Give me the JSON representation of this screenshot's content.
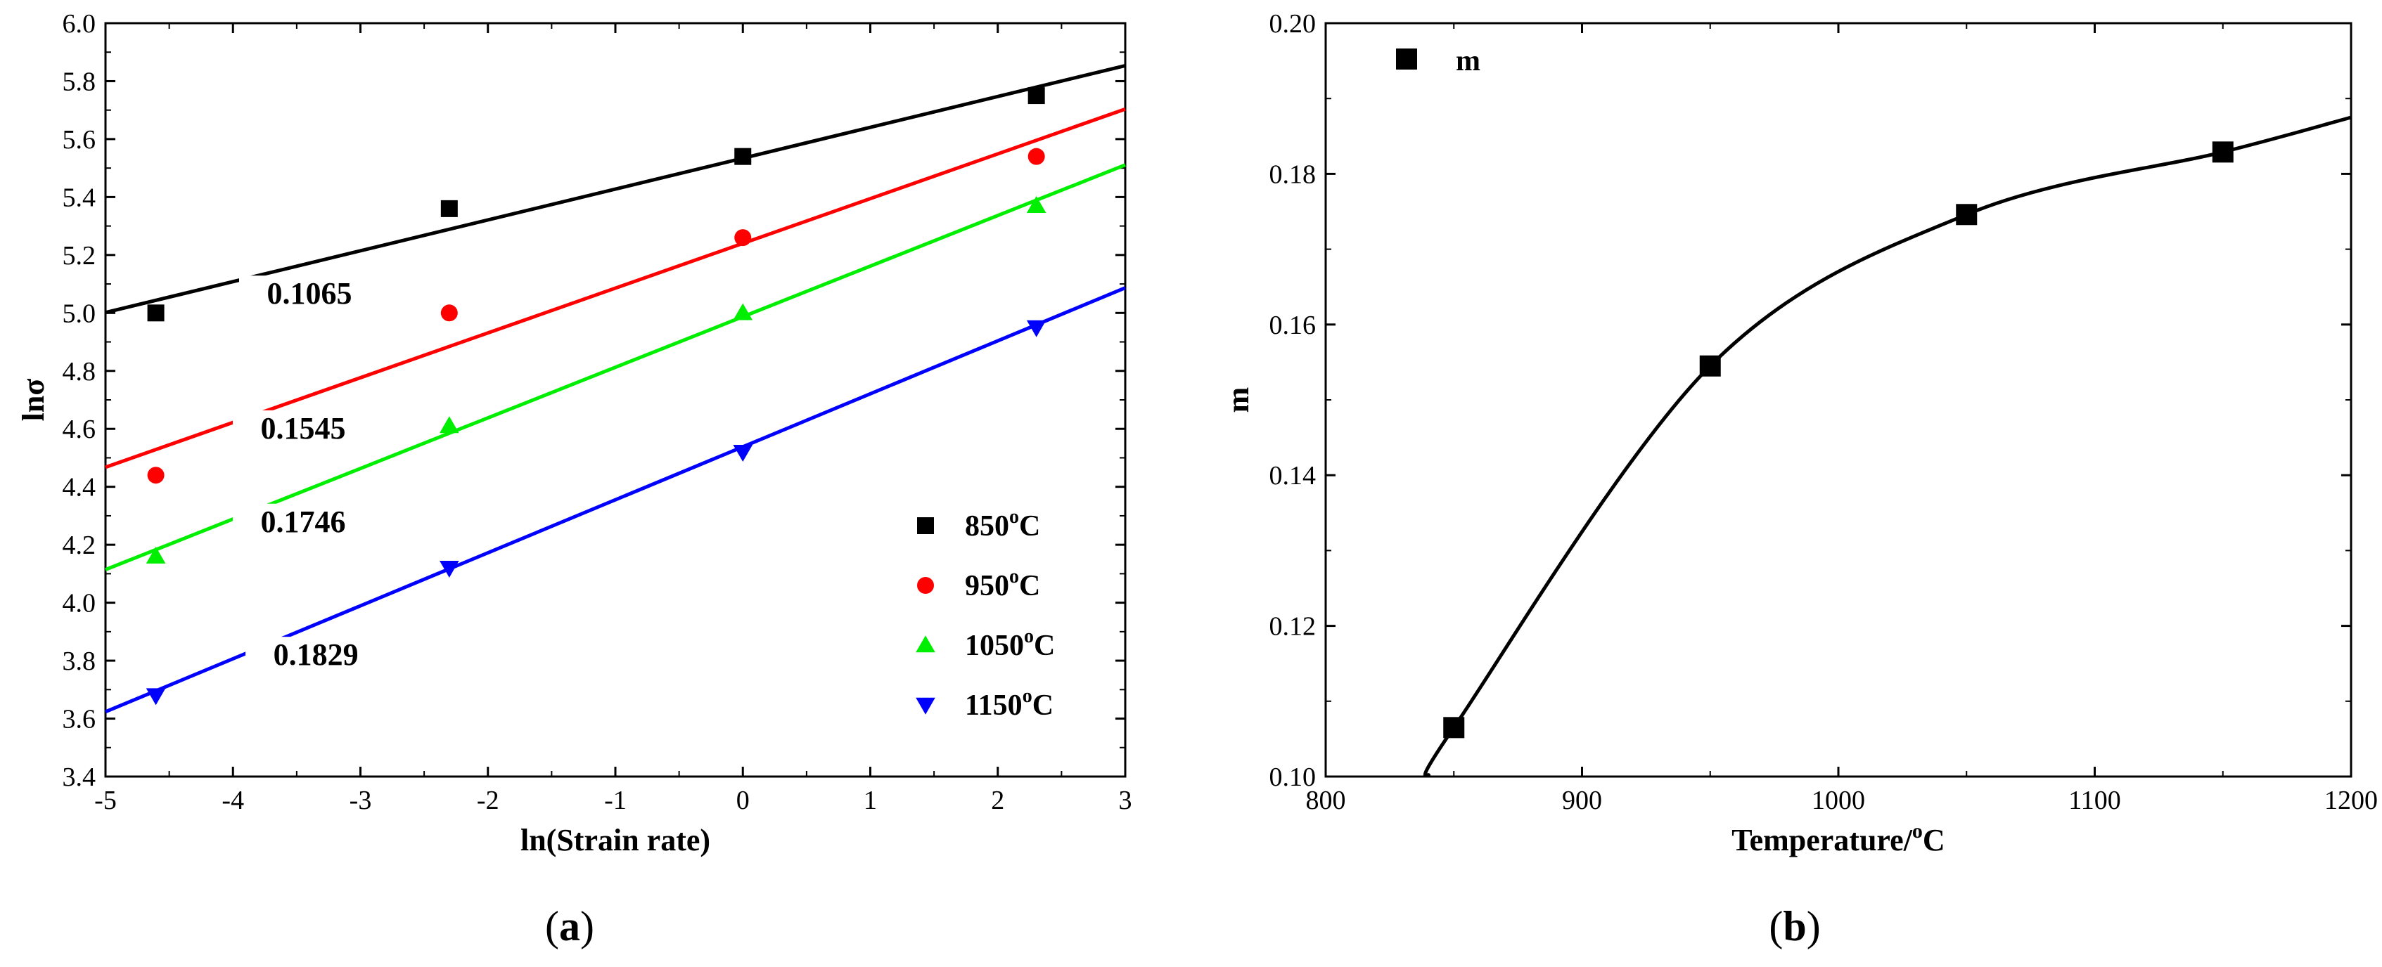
{
  "chart_data": [
    {
      "type": "scatter",
      "panel_label": "a",
      "xlabel": "ln(Strain rate)",
      "ylabel": "lnσ",
      "xlim": [
        -5,
        3
      ],
      "ylim": [
        3.4,
        6.0
      ],
      "xticks": [
        "-5",
        "-4",
        "-3",
        "-2",
        "-1",
        "0",
        "1",
        "2",
        "3"
      ],
      "yticks": [
        "3.4",
        "3.6",
        "3.8",
        "4.0",
        "4.2",
        "4.4",
        "4.6",
        "4.8",
        "5.0",
        "5.2",
        "5.4",
        "5.6",
        "5.8",
        "6.0"
      ],
      "legend_position": "bottom-right",
      "series": [
        {
          "name": "850",
          "legend_suffix": "C",
          "marker": "square",
          "color": "#000000",
          "x": [
            -4.605,
            -2.303,
            0,
            2.303
          ],
          "y": [
            5.0,
            5.36,
            5.54,
            5.75
          ],
          "slope": 0.1065,
          "intercept": 5.534,
          "slope_label": "0.1065"
        },
        {
          "name": "950",
          "legend_suffix": "C",
          "marker": "circle",
          "color": "#ff0000",
          "x": [
            -4.605,
            -2.303,
            0,
            2.303
          ],
          "y": [
            4.44,
            5.0,
            5.26,
            5.54
          ],
          "slope": 0.1545,
          "intercept": 5.24,
          "slope_label": "0.1545"
        },
        {
          "name": "1050",
          "legend_suffix": "C",
          "marker": "triangle-up",
          "color": "#00ee00",
          "x": [
            -4.605,
            -2.303,
            0,
            2.303
          ],
          "y": [
            4.16,
            4.61,
            5.0,
            5.37
          ],
          "slope": 0.1746,
          "intercept": 4.987,
          "slope_label": "0.1746"
        },
        {
          "name": "1150",
          "legend_suffix": "C",
          "marker": "triangle-down",
          "color": "#0000ff",
          "x": [
            -4.605,
            -2.303,
            0,
            2.303
          ],
          "y": [
            3.68,
            4.12,
            4.52,
            4.95
          ],
          "slope": 0.1829,
          "intercept": 4.538,
          "slope_label": "0.1829"
        }
      ]
    },
    {
      "type": "line",
      "panel_label": "b",
      "xlabel_main": "Temperature/",
      "xlabel_sup": "o",
      "xlabel_end": "C",
      "ylabel": "m",
      "xlim": [
        800,
        1200
      ],
      "ylim": [
        0.1,
        0.2
      ],
      "xticks": [
        "800",
        "900",
        "1000",
        "1100",
        "1200"
      ],
      "yticks": [
        "0.10",
        "0.12",
        "0.14",
        "0.16",
        "0.18",
        "0.20"
      ],
      "legend_position": "top-left",
      "series": [
        {
          "name": "m",
          "marker": "square",
          "color": "#000000",
          "x": [
            850,
            950,
            1050,
            1150
          ],
          "y": [
            0.1065,
            0.1545,
            0.1746,
            0.1829
          ]
        }
      ],
      "fit_curve": {
        "x": [
          840,
          850,
          950,
          1050,
          1150,
          1200
        ],
        "y": [
          0.1,
          0.1065,
          0.1545,
          0.1746,
          0.1829,
          0.1875
        ]
      }
    }
  ],
  "degree_sup": "o"
}
